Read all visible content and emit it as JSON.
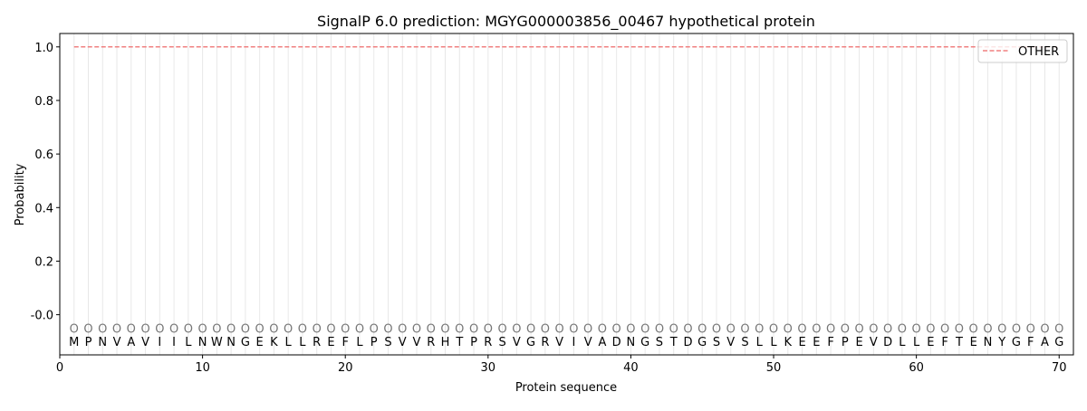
{
  "chart_data": {
    "type": "line",
    "title": "SignalP 6.0 prediction: MGYG000003856_00467 hypothetical protein",
    "xlabel": "Protein sequence",
    "ylabel": "Probability",
    "xlim": [
      0,
      71
    ],
    "ylim": [
      -0.15,
      1.05
    ],
    "xticks": [
      0,
      10,
      20,
      30,
      40,
      50,
      60,
      70
    ],
    "yticks": [
      "-0.0",
      "0.2",
      "0.4",
      "0.6",
      "0.8",
      "1.0"
    ],
    "ytick_values": [
      0,
      0.2,
      0.4,
      0.6,
      0.8,
      1.0
    ],
    "legend_position": "top-right",
    "series": [
      {
        "name": "OTHER",
        "color": "#f08080",
        "style": "dashed",
        "x_range": [
          1,
          70
        ],
        "value": 1.0
      }
    ],
    "sequence": [
      "M",
      "P",
      "N",
      "V",
      "A",
      "V",
      "I",
      "I",
      "L",
      "N",
      "W",
      "N",
      "G",
      "E",
      "K",
      "L",
      "L",
      "R",
      "E",
      "F",
      "L",
      "P",
      "S",
      "V",
      "V",
      "R",
      "H",
      "T",
      "P",
      "R",
      "S",
      "V",
      "G",
      "R",
      "V",
      "I",
      "V",
      "A",
      "D",
      "N",
      "G",
      "S",
      "T",
      "D",
      "G",
      "S",
      "V",
      "S",
      "L",
      "L",
      "K",
      "E",
      "E",
      "F",
      "P",
      "E",
      "V",
      "D",
      "L",
      "L",
      "E",
      "F",
      "T",
      "E",
      "N",
      "Y",
      "G",
      "F",
      "A",
      "G"
    ],
    "predicted_label": "O",
    "grid": "vertical lines at each residue"
  }
}
